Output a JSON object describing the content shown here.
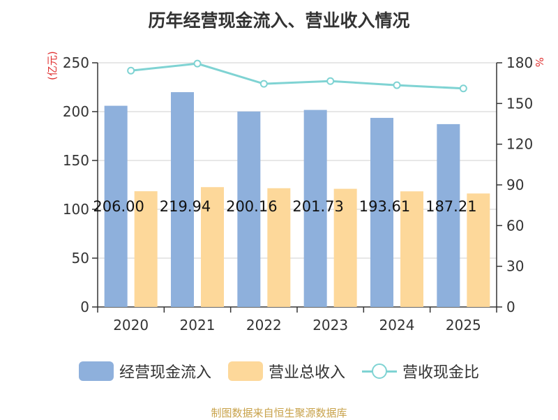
{
  "chart_data": {
    "type": "bar",
    "title": "历年经营现金流入、营业收入情况",
    "y_left_unit": "(亿元)",
    "y_right_unit": "%",
    "categories": [
      "2020",
      "2021",
      "2022",
      "2023",
      "2024",
      "2025"
    ],
    "ylim_left": [
      0,
      250
    ],
    "yticks_left": [
      0,
      50,
      100,
      150,
      200,
      250
    ],
    "ylim_right": [
      0,
      180
    ],
    "yticks_right": [
      0,
      30,
      60,
      90,
      120,
      150,
      180
    ],
    "grid": true,
    "legend_position": "bottom",
    "series": [
      {
        "name": "经营现金流入",
        "kind": "bar",
        "axis": "left",
        "color": "#8eb0dc",
        "values": [
          206.0,
          219.94,
          200.16,
          201.73,
          193.61,
          187.21
        ],
        "labels": [
          "206.00",
          "219.94",
          "200.16",
          "201.73",
          "193.61",
          "187.21"
        ]
      },
      {
        "name": "营业总收入",
        "kind": "bar",
        "axis": "left",
        "color": "#fdd89a",
        "values": [
          118.5,
          122.7,
          121.6,
          121.0,
          118.4,
          116.2
        ]
      },
      {
        "name": "营收现金比",
        "kind": "line",
        "axis": "right",
        "color": "#7fd3d3",
        "values": [
          174.2,
          179.4,
          164.5,
          166.5,
          163.5,
          161.1
        ]
      }
    ]
  },
  "footer": "制图数据来自恒生聚源数据库"
}
